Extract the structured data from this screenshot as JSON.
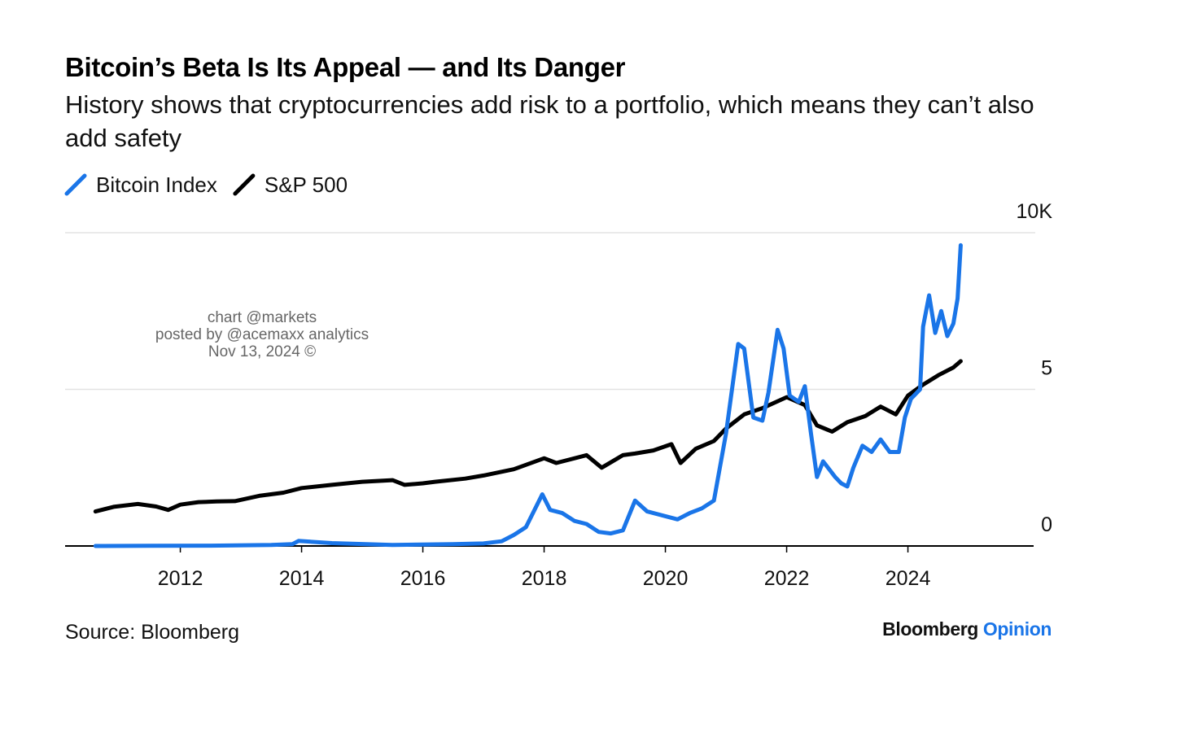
{
  "chart_data": {
    "type": "line",
    "title": "Bitcoin’s Beta Is Its Appeal — and Its Danger",
    "subtitle": "History shows that cryptocurrencies add risk to a portfolio, which means they can’t also add safety",
    "annotations": [
      "chart @markets",
      "posted by @acemaxx analytics",
      "Nov 13, 2024 ©"
    ],
    "source": "Source: Bloomberg",
    "brand": [
      "Bloomberg",
      "Opinion"
    ],
    "xlim": [
      2010.1,
      2026.1
    ],
    "xticks": [
      2012,
      2014,
      2016,
      2018,
      2020,
      2022,
      2024
    ],
    "ylim": [
      0,
      10000
    ],
    "yticks": [
      0,
      {
        "value": 5000,
        "label": "5"
      },
      {
        "value": 10000,
        "label": "10K"
      }
    ],
    "grid": true,
    "series": [
      {
        "name": "Bitcoin Index",
        "color": "#1a75e8",
        "x": [
          2010.6,
          2011.5,
          2012.5,
          2013.5,
          2013.85,
          2013.95,
          2014.5,
          2015.5,
          2016.5,
          2017.0,
          2017.3,
          2017.5,
          2017.7,
          2017.97,
          2018.1,
          2018.3,
          2018.5,
          2018.7,
          2018.9,
          2019.1,
          2019.3,
          2019.5,
          2019.7,
          2020.0,
          2020.2,
          2020.4,
          2020.6,
          2020.8,
          2021.0,
          2021.2,
          2021.3,
          2021.45,
          2021.6,
          2021.7,
          2021.85,
          2021.95,
          2022.05,
          2022.2,
          2022.3,
          2022.4,
          2022.5,
          2022.6,
          2022.8,
          2022.9,
          2023.0,
          2023.1,
          2023.25,
          2023.4,
          2023.55,
          2023.7,
          2023.85,
          2023.95,
          2024.05,
          2024.2,
          2024.25,
          2024.35,
          2024.45,
          2024.55,
          2024.65,
          2024.75,
          2024.82,
          2024.87
        ],
        "values": [
          0,
          5,
          10,
          30,
          60,
          160,
          90,
          30,
          60,
          80,
          150,
          350,
          600,
          1650,
          1150,
          1050,
          800,
          700,
          450,
          400,
          500,
          1450,
          1100,
          950,
          850,
          1050,
          1200,
          1450,
          3600,
          6450,
          6300,
          4100,
          4000,
          4900,
          6900,
          6300,
          4800,
          4600,
          5100,
          3600,
          2200,
          2700,
          2200,
          2000,
          1900,
          2500,
          3200,
          3000,
          3400,
          3000,
          3000,
          4100,
          4700,
          5000,
          7000,
          8000,
          6800,
          7500,
          6700,
          7100,
          7900,
          9600
        ]
      },
      {
        "name": "S&P 500",
        "color": "#000000",
        "x": [
          2010.6,
          2010.9,
          2011.3,
          2011.6,
          2011.8,
          2012.0,
          2012.3,
          2012.6,
          2012.9,
          2013.3,
          2013.7,
          2014.0,
          2014.5,
          2015.0,
          2015.5,
          2015.7,
          2016.0,
          2016.2,
          2016.7,
          2017.0,
          2017.5,
          2018.0,
          2018.2,
          2018.7,
          2018.95,
          2019.3,
          2019.5,
          2019.8,
          2020.1,
          2020.25,
          2020.5,
          2020.8,
          2021.0,
          2021.3,
          2021.6,
          2022.0,
          2022.3,
          2022.5,
          2022.75,
          2023.0,
          2023.3,
          2023.55,
          2023.8,
          2024.0,
          2024.25,
          2024.5,
          2024.75,
          2024.87
        ],
        "values": [
          1100,
          1250,
          1340,
          1260,
          1150,
          1320,
          1400,
          1420,
          1430,
          1600,
          1700,
          1850,
          1950,
          2050,
          2100,
          1950,
          2000,
          2050,
          2150,
          2250,
          2450,
          2800,
          2650,
          2900,
          2500,
          2900,
          2950,
          3050,
          3250,
          2650,
          3100,
          3350,
          3750,
          4200,
          4400,
          4750,
          4500,
          3850,
          3650,
          3950,
          4150,
          4450,
          4200,
          4800,
          5150,
          5450,
          5700,
          5900
        ]
      }
    ]
  }
}
